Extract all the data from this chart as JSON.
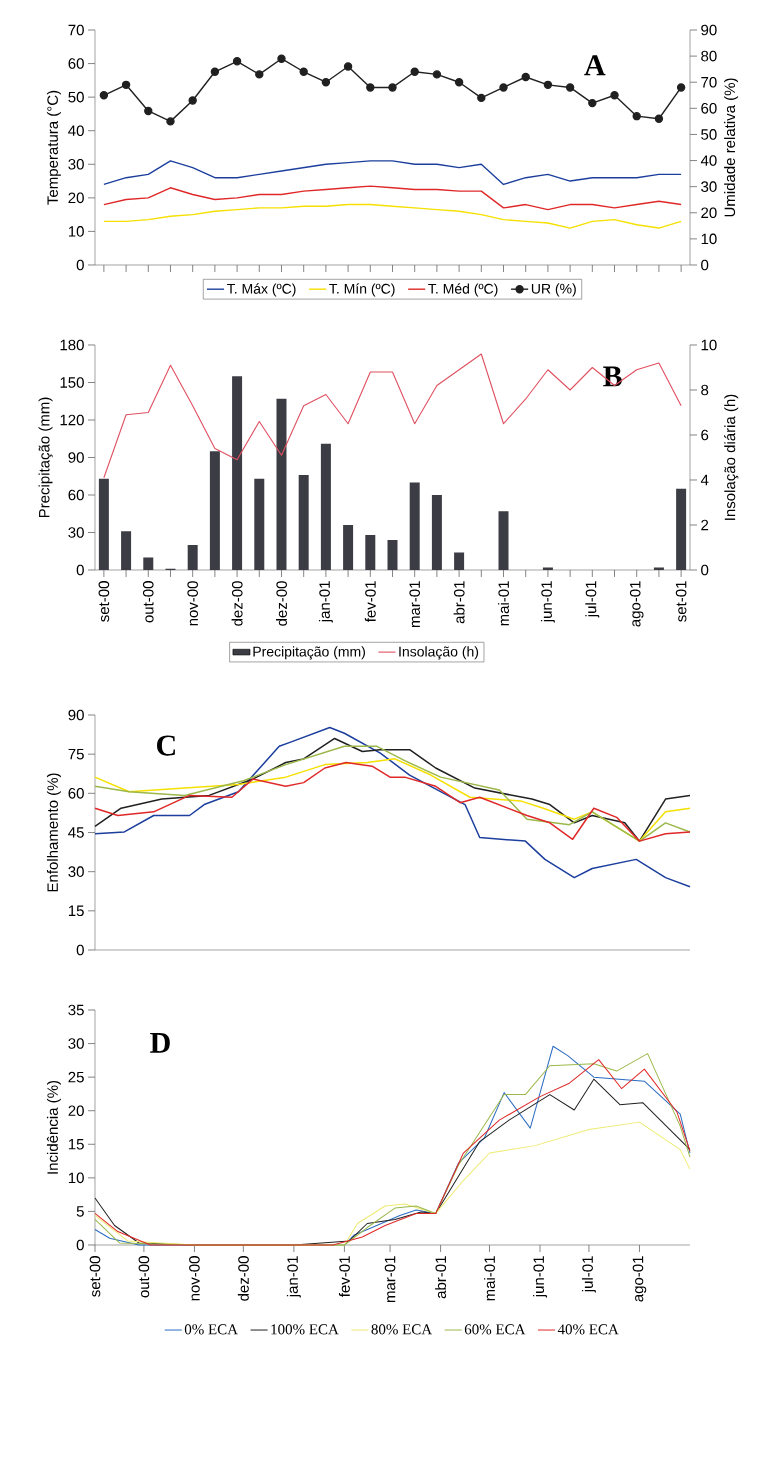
{
  "chart_data": [
    {
      "type": "line",
      "title": "A",
      "ylabel": "Temperatura (°C)",
      "y2label": "Umidade relativa (%)",
      "categories": [
        null,
        null,
        null,
        null,
        null,
        null,
        null,
        null,
        null,
        null,
        null,
        null,
        null,
        null,
        null,
        null,
        null,
        null,
        null,
        null,
        null,
        null,
        null,
        null,
        null,
        null,
        null
      ],
      "ylim": [
        0,
        70
      ],
      "yticks": [
        0,
        10,
        20,
        30,
        40,
        50,
        60,
        70
      ],
      "y2lim": [
        0,
        90
      ],
      "y2ticks": [
        0,
        10,
        20,
        30,
        40,
        50,
        60,
        70,
        80,
        90
      ],
      "legend": "bottom",
      "series": [
        {
          "name": "T. Máx (ºC)",
          "color": "#1c3f9e",
          "values": [
            24,
            26,
            27,
            31,
            29,
            26,
            26,
            27,
            28,
            29,
            30,
            30.5,
            31,
            31,
            30,
            30,
            29,
            30,
            24,
            26,
            27,
            25,
            26,
            26,
            26,
            27,
            27
          ]
        },
        {
          "name": "T. Mín (ºC)",
          "color": "#f5e000",
          "values": [
            13,
            13,
            13.5,
            14.5,
            15,
            16,
            16.5,
            17,
            17,
            17.5,
            17.5,
            18,
            18,
            17.5,
            17,
            16.5,
            16,
            15,
            13.5,
            13,
            12.5,
            11,
            13,
            13.5,
            12,
            11,
            13
          ]
        },
        {
          "name": "T. Méd (ºC)",
          "color": "#e02828",
          "values": [
            18,
            19.5,
            20,
            23,
            21,
            19.5,
            20,
            21,
            21,
            22,
            22.5,
            23,
            23.5,
            23,
            22.5,
            22.5,
            22,
            22,
            17,
            18,
            16.5,
            18,
            18,
            17,
            18,
            19,
            18
          ]
        },
        {
          "name": "UR (%)",
          "color": "#202020",
          "axis": "y2",
          "marker": "circle",
          "values": [
            65,
            69,
            59,
            55,
            63,
            74,
            78,
            73,
            79,
            74,
            70,
            76,
            68,
            68,
            74,
            73,
            70,
            64,
            68,
            72,
            69,
            68,
            62,
            65,
            57,
            56,
            68
          ]
        }
      ]
    },
    {
      "type": "bar",
      "title": "B",
      "ylabel": "Precipitação (mm)",
      "y2label": "Insolação diária (h)",
      "categories": [
        "set-00",
        null,
        "out-00",
        null,
        "nov-00",
        null,
        "dez-00",
        null,
        "dez-00",
        null,
        "jan-01",
        null,
        "fev-01",
        null,
        "mar-01",
        null,
        "abr-01",
        null,
        "mai-01",
        null,
        "jun-01",
        null,
        "jul-01",
        null,
        "ago-01",
        null,
        "set-01"
      ],
      "ylim": [
        0,
        180
      ],
      "yticks": [
        0,
        30,
        60,
        90,
        120,
        150,
        180
      ],
      "y2lim": [
        0,
        10
      ],
      "y2ticks": [
        0,
        2,
        4,
        6,
        8,
        10
      ],
      "legend": "bottom",
      "series": [
        {
          "name": "Precipitação (mm)",
          "color": "#3c3c44",
          "values": [
            73,
            31,
            10,
            1,
            20,
            95,
            155,
            73,
            137,
            76,
            101,
            36,
            28,
            24,
            70,
            60,
            14,
            null,
            47,
            null,
            2,
            null,
            null,
            null,
            null,
            2,
            65
          ]
        },
        {
          "name": "Insolação (h)",
          "type": "line",
          "axis": "y2",
          "color": "#e05060",
          "values": [
            4.1,
            6.9,
            7.0,
            9.1,
            7.3,
            5.4,
            4.9,
            6.6,
            5.1,
            7.3,
            7.8,
            6.5,
            8.8,
            8.8,
            6.5,
            8.2,
            8.9,
            9.6,
            6.5,
            7.6,
            8.9,
            8.0,
            9.0,
            8.2,
            8.9,
            9.2,
            7.3
          ]
        }
      ]
    },
    {
      "type": "line",
      "title": "C",
      "ylabel": "Enfolhamento (%)",
      "tick_labels": "y",
      "xlim": [
        "2000-09-01",
        "2001-09-01"
      ],
      "ylim": [
        0,
        90
      ],
      "yticks": [
        0,
        15,
        30,
        45,
        60,
        75,
        90
      ],
      "series": [
        {
          "color": "#1c3f9e",
          "x": [
            "2000-09-01",
            "2000-09-19",
            "2000-10-07",
            "2000-10-17",
            "2000-10-29",
            "2000-11-07",
            "2000-11-28",
            "2000-12-23",
            "2000-12-30",
            "2001-01-23",
            "2001-02-01",
            "2001-02-23",
            "2001-03-13",
            "2001-04-16",
            "2001-04-25",
            "2001-05-23",
            "2001-06-04",
            "2001-06-22",
            "2001-07-03",
            "2001-07-30",
            "2001-08-17",
            "2001-09-01"
          ],
          "values": [
            44.5,
            45.2,
            51.5,
            51.5,
            51.5,
            55.7,
            60.6,
            78,
            79.6,
            85.2,
            83,
            75.4,
            67,
            55.7,
            43.1,
            41.7,
            34.7,
            27.7,
            31.2,
            34.7,
            27.7,
            24.2
          ]
        },
        {
          "color": "#202020",
          "x": [
            "2000-09-01",
            "2000-09-17",
            "2000-10-12",
            "2000-11-10",
            "2000-12-07",
            "2000-12-27",
            "2001-01-07",
            "2001-01-26",
            "2001-02-12",
            "2001-02-23",
            "2001-03-13",
            "2001-03-29",
            "2001-04-22",
            "2001-05-27",
            "2001-06-07",
            "2001-06-22",
            "2001-07-03",
            "2001-07-23",
            "2001-08-01",
            "2001-08-17",
            "2001-09-01"
          ],
          "values": [
            47.3,
            54.3,
            57.8,
            59.2,
            65.5,
            71.8,
            73.2,
            81,
            76,
            76.7,
            76.7,
            69.7,
            62,
            57.8,
            55.7,
            48.7,
            51.5,
            48.7,
            41.7,
            57.8,
            59.2
          ]
        },
        {
          "color": "#f5e000",
          "x": [
            "2000-09-01",
            "2000-09-22",
            "2000-10-26",
            "2000-11-28",
            "2000-12-27",
            "2001-01-20",
            "2001-02-15",
            "2001-03-04",
            "2001-03-26",
            "2001-04-19",
            "2001-05-20",
            "2001-06-03",
            "2001-06-22",
            "2001-07-03",
            "2001-08-01",
            "2001-08-17",
            "2001-09-01"
          ],
          "values": [
            66.2,
            60.6,
            62,
            63.4,
            66.2,
            71,
            71.8,
            73.2,
            67,
            58.5,
            57.1,
            54.3,
            50.1,
            52.9,
            41.7,
            52.9,
            54.3
          ]
        },
        {
          "color": "#9cb84a",
          "x": [
            "2000-09-01",
            "2000-09-22",
            "2000-10-26",
            "2000-12-01",
            "2000-12-27",
            "2001-02-01",
            "2001-02-21",
            "2001-03-10",
            "2001-04-01",
            "2001-05-07",
            "2001-05-24",
            "2001-06-19",
            "2001-07-03",
            "2001-08-01",
            "2001-08-17",
            "2001-09-01"
          ],
          "values": [
            62.7,
            60.6,
            59.2,
            64.8,
            71,
            78,
            78,
            72.5,
            66.2,
            61.3,
            50.1,
            48,
            52.9,
            41.7,
            48.7,
            45.2
          ]
        },
        {
          "color": "#e02828",
          "x": [
            "2000-09-01",
            "2000-09-15",
            "2000-10-07",
            "2000-10-29",
            "2000-11-24",
            "2000-12-07",
            "2000-12-27",
            "2001-01-07",
            "2001-01-20",
            "2001-02-02",
            "2001-02-18",
            "2001-03-01",
            "2001-03-10",
            "2001-03-29",
            "2001-04-13",
            "2001-04-25",
            "2001-05-24",
            "2001-06-07",
            "2001-06-21",
            "2001-07-04",
            "2001-07-18",
            "2001-08-01",
            "2001-08-17",
            "2001-09-01"
          ],
          "values": [
            54.3,
            51.5,
            52.9,
            59.2,
            58.5,
            65.5,
            62.7,
            64.1,
            69.7,
            71.8,
            70.4,
            66.2,
            66.2,
            62.7,
            56.4,
            58.5,
            51.5,
            48.7,
            42.4,
            54.3,
            50.8,
            41.7,
            44.5,
            45.2
          ]
        }
      ]
    },
    {
      "type": "line",
      "title": "D",
      "ylabel": "Incidência (%)",
      "xlim": [
        "2000-09-01",
        "2001-09-01"
      ],
      "xticks": [
        {
          "value": "2000-09-01",
          "label": "set-00"
        },
        {
          "value": "2000-10-01",
          "label": "out-00"
        },
        {
          "value": "2000-11-01",
          "label": "nov-00"
        },
        {
          "value": "2000-12-01",
          "label": "dez-00"
        },
        {
          "value": "2001-01-01",
          "label": "jan-01"
        },
        {
          "value": "2001-02-01",
          "label": "fev-01"
        },
        {
          "value": "2001-03-01",
          "label": "mar-01"
        },
        {
          "value": "2001-04-01",
          "label": "abr-01"
        },
        {
          "value": "2001-05-01",
          "label": "mai-01"
        },
        {
          "value": "2001-06-01",
          "label": "jun-01"
        },
        {
          "value": "2001-07-01",
          "label": "jul-01"
        },
        {
          "value": "2001-08-01",
          "label": "ago-01"
        }
      ],
      "ylim": [
        0,
        35
      ],
      "yticks": [
        0,
        5,
        10,
        15,
        20,
        25,
        30,
        35
      ],
      "legend": "bottom",
      "series": [
        {
          "name": "0% ECA",
          "color": "#2a6cc0",
          "x": [
            "2000-09-01",
            "2000-09-10",
            "2000-09-28",
            "2000-11-01",
            "2000-12-01",
            "2001-01-01",
            "2001-02-01",
            "2001-02-07",
            "2001-02-18",
            "2001-03-07",
            "2001-03-17",
            "2001-03-29",
            "2001-04-12",
            "2001-04-28",
            "2001-05-10",
            "2001-05-26",
            "2001-06-09",
            "2001-06-18",
            "2001-07-04",
            "2001-08-04",
            "2001-08-26",
            "2001-09-01"
          ],
          "values": [
            2.3,
            1,
            0,
            0,
            0,
            0,
            0,
            1.5,
            2.6,
            4.4,
            5.2,
            4.7,
            12.2,
            16,
            22.7,
            17.4,
            29.6,
            28.2,
            25,
            24.4,
            19.5,
            13.7
          ]
        },
        {
          "name": "100% ECA",
          "color": "#202020",
          "x": [
            "2000-09-01",
            "2000-09-13",
            "2000-09-28",
            "2000-11-01",
            "2000-12-01",
            "2001-01-01",
            "2001-02-04",
            "2001-02-15",
            "2001-03-04",
            "2001-03-20",
            "2001-03-29",
            "2001-04-25",
            "2001-05-13",
            "2001-06-07",
            "2001-06-22",
            "2001-07-04",
            "2001-07-20",
            "2001-08-03",
            "2001-09-01"
          ],
          "values": [
            7,
            2.9,
            0.3,
            0,
            0,
            0,
            0.6,
            3.2,
            3.8,
            4.9,
            4.7,
            15.4,
            18.6,
            22.4,
            20.1,
            24.7,
            20.9,
            21.2,
            14.2
          ]
        },
        {
          "name": "80% ECA",
          "color": "#eeea70",
          "x": [
            "2000-09-01",
            "2000-09-21",
            "2000-11-01",
            "2000-12-01",
            "2001-01-01",
            "2001-02-01",
            "2001-02-09",
            "2001-02-26",
            "2001-03-10",
            "2001-03-29",
            "2001-04-15",
            "2001-05-01",
            "2001-05-29",
            "2001-07-01",
            "2001-08-01",
            "2001-08-26",
            "2001-09-01"
          ],
          "values": [
            4.4,
            0.6,
            0,
            0,
            0,
            0,
            3.2,
            5.8,
            6.1,
            4.7,
            9.6,
            13.7,
            14.8,
            17.2,
            18.3,
            14.2,
            11.3
          ]
        },
        {
          "name": "60% ECA",
          "color": "#9cb84a",
          "x": [
            "2000-09-01",
            "2000-09-16",
            "2000-11-01",
            "2000-12-01",
            "2001-01-01",
            "2001-02-01",
            "2001-02-15",
            "2001-03-04",
            "2001-03-17",
            "2001-03-29",
            "2001-04-12",
            "2001-05-10",
            "2001-05-23",
            "2001-06-07",
            "2001-07-04",
            "2001-07-18",
            "2001-08-06",
            "2001-08-26",
            "2001-09-01"
          ],
          "values": [
            3.8,
            0.3,
            0,
            0,
            0,
            0,
            2.6,
            5.5,
            5.8,
            4.7,
            11.9,
            22.4,
            22.4,
            26.7,
            27,
            25.9,
            28.5,
            17.7,
            13.1
          ]
        },
        {
          "name": "40% ECA",
          "color": "#e02828",
          "x": [
            "2000-09-01",
            "2000-09-15",
            "2000-10-05",
            "2001-01-25",
            "2001-02-12",
            "2001-02-26",
            "2001-03-17",
            "2001-03-29",
            "2001-04-15",
            "2001-05-07",
            "2001-06-01",
            "2001-06-19",
            "2001-07-07",
            "2001-07-21",
            "2001-08-04",
            "2001-08-24",
            "2001-09-01"
          ],
          "values": [
            4.7,
            2,
            0,
            0,
            1.2,
            2.9,
            4.7,
            4.7,
            13.7,
            18.6,
            22.1,
            24.1,
            27.6,
            23.3,
            26.2,
            19.8,
            14
          ]
        }
      ]
    }
  ]
}
